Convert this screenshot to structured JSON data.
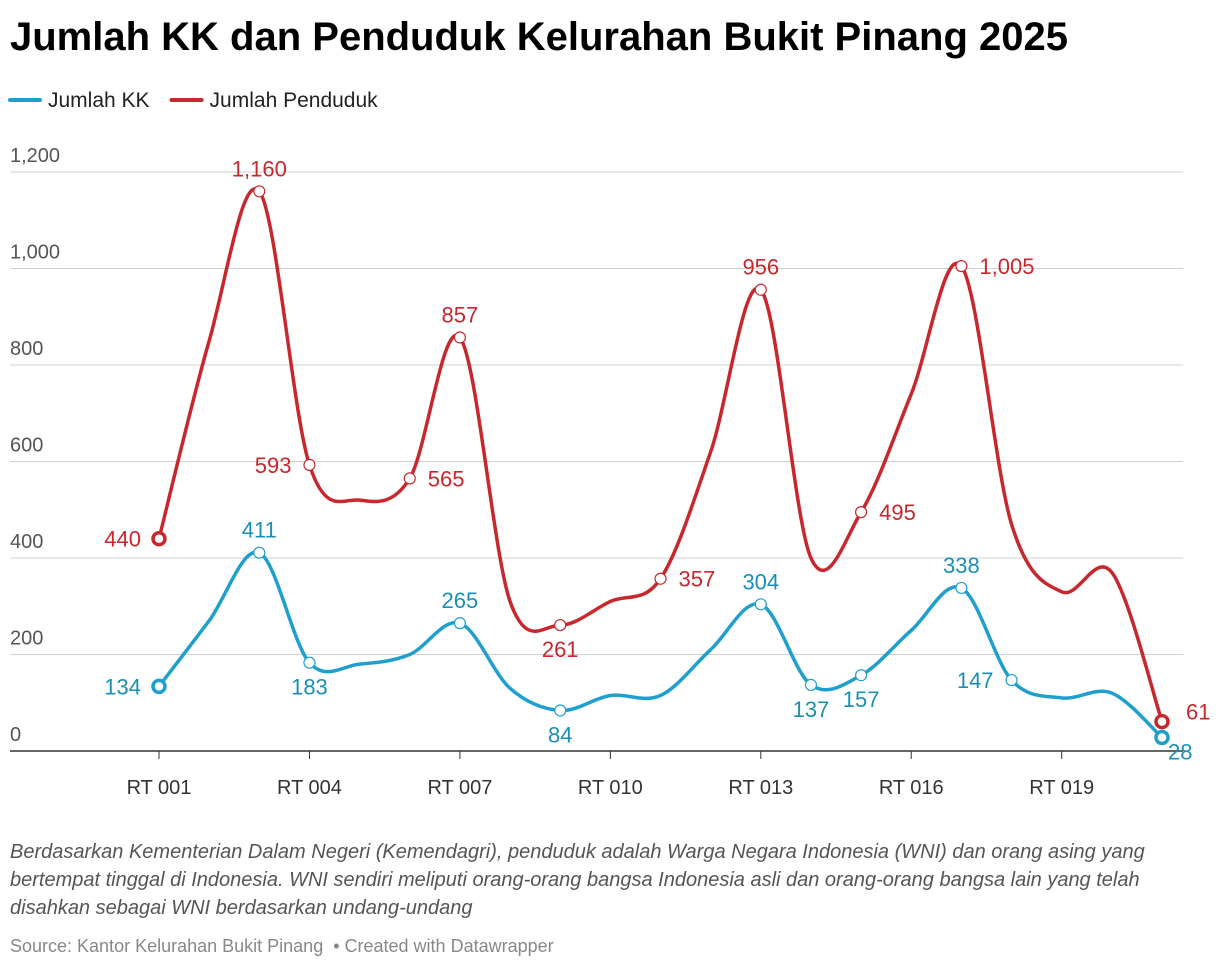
{
  "chart_data": {
    "type": "line",
    "title": "Jumlah KK dan Penduduk Kelurahan Bukit Pinang 2025",
    "categories": [
      "RT 001",
      null,
      null,
      "RT 004",
      null,
      null,
      "RT 007",
      null,
      null,
      "RT 010",
      null,
      null,
      "RT 013",
      null,
      null,
      "RT 016",
      null,
      null,
      "RT 019",
      null,
      null
    ],
    "series": [
      {
        "name": "Jumlah KK",
        "color": "#1f9fcd",
        "values": [
          134,
          270,
          411,
          183,
          180,
          200,
          265,
          130,
          84,
          115,
          115,
          210,
          304,
          137,
          157,
          250,
          338,
          147,
          110,
          120,
          28
        ],
        "value_labels": [
          "134",
          null,
          "411",
          "183",
          null,
          null,
          "265",
          null,
          "84",
          null,
          null,
          null,
          "304",
          "137",
          "157",
          null,
          "338",
          "147",
          null,
          null,
          "28"
        ]
      },
      {
        "name": "Jumlah Penduduk",
        "color": "#c7282d",
        "values": [
          440,
          850,
          1160,
          593,
          520,
          565,
          857,
          310,
          261,
          310,
          357,
          620,
          956,
          400,
          495,
          740,
          1005,
          470,
          330,
          370,
          61
        ],
        "value_labels": [
          "440",
          null,
          "1,160",
          "593",
          null,
          "565",
          "857",
          null,
          "261",
          null,
          "357",
          null,
          "956",
          null,
          "495",
          null,
          "1,005",
          null,
          null,
          null,
          "61"
        ]
      }
    ],
    "ylim": [
      0,
      1200
    ],
    "yticks": [
      0,
      200,
      400,
      600,
      800,
      {
        "value": 1000,
        "label": "1,000"
      },
      {
        "value": 1200,
        "label": "1,200"
      }
    ],
    "grid": true,
    "note": "Berdasarkan Kementerian Dalam Negeri (Kemendagri), penduduk adalah Warga Negara Indonesia (WNI) dan orang asing yang bertempat tinggal di Indonesia. WNI sendiri meliputi orang-orang bangsa Indonesia asli dan orang-orang bangsa lain yang telah disahkan sebagai WNI berdasarkan undang-undang",
    "source": "Source: Kantor Kelurahan Bukit Pinang",
    "credit": "Created with Datawrapper"
  }
}
